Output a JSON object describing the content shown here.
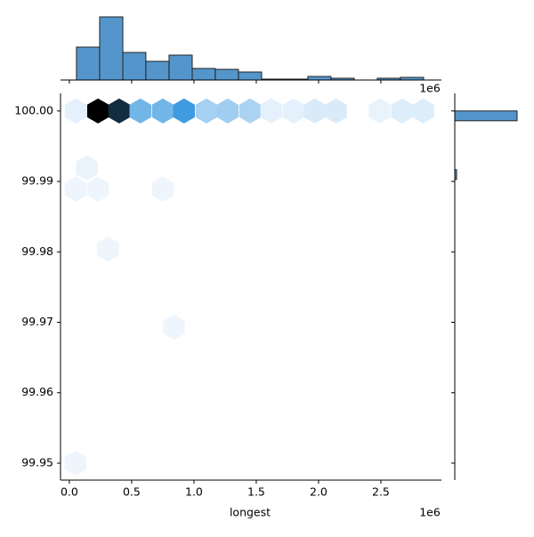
{
  "chart_data": [
    {
      "type": "hexbin",
      "x_label": "longest",
      "x_offset": "1e6",
      "x": [
        0.05,
        0.23,
        0.4,
        0.57,
        0.75,
        0.92,
        1.1,
        1.27,
        1.45,
        1.62,
        1.8,
        1.97,
        2.14,
        2.49,
        2.67,
        2.84,
        0.14,
        0.23,
        0.05,
        0.75,
        0.31,
        0.84,
        0.05
      ],
      "y": [
        100.0,
        100.0,
        100.0,
        100.0,
        100.0,
        100.0,
        100.0,
        100.0,
        100.0,
        100.0,
        100.0,
        100.0,
        100.0,
        100.0,
        100.0,
        100.0,
        99.9919,
        99.9889,
        99.9889,
        99.9889,
        99.9804,
        99.9693,
        99.95
      ],
      "values": [
        3,
        70,
        60,
        25,
        25,
        35,
        15,
        16,
        14,
        3,
        3,
        5,
        5,
        2,
        4,
        4,
        2,
        1,
        1,
        1,
        1,
        1,
        1
      ],
      "cmap": [
        "#f3f8fd",
        "#3f9be0",
        "#000000"
      ],
      "xlim": [
        -0.071,
        2.986
      ],
      "ylim": [
        99.9476,
        100.0025
      ],
      "xticks": [
        {
          "value": 0,
          "label": "0.0"
        },
        0.5,
        {
          "value": 1,
          "label": "1.0"
        },
        1.5,
        {
          "value": 2,
          "label": "2.0"
        },
        2.5
      ],
      "yticks": [
        99.95,
        99.96,
        99.97,
        99.98,
        99.99,
        {
          "value": 100,
          "label": "100.00"
        }
      ]
    },
    {
      "type": "histogram",
      "orientation": "vertical",
      "x_offset": "1e6",
      "color": "#5496cc",
      "bins": [
        0.057,
        0.243,
        0.429,
        0.614,
        0.8,
        0.986,
        1.171,
        1.357,
        1.543,
        1.729,
        1.914,
        2.1,
        2.286,
        2.471,
        2.657,
        2.843
      ],
      "values": [
        37,
        71,
        31,
        21,
        28,
        13,
        12,
        9,
        1,
        1,
        4,
        2,
        0,
        2,
        3
      ],
      "xlim": [
        -0.071,
        2.986
      ],
      "xticks": [
        0,
        0.5,
        1,
        1.5,
        2,
        2.5
      ],
      "count_lim": [
        0,
        72
      ]
    },
    {
      "type": "histogram",
      "orientation": "horizontal",
      "color": "#5496cc",
      "bins": [
        99.95,
        99.95139,
        99.95278,
        99.95417,
        99.95556,
        99.95694,
        99.95833,
        99.95972,
        99.96111,
        99.9625,
        99.96389,
        99.96528,
        99.96667,
        99.96806,
        99.96944,
        99.97083,
        99.97222,
        99.97361,
        99.975,
        99.97639,
        99.97778,
        99.97917,
        99.98056,
        99.98194,
        99.98333,
        99.98472,
        99.98611,
        99.9875,
        99.98889,
        99.99028,
        99.99167,
        99.99306,
        99.99444,
        99.99583,
        99.99722,
        99.99861,
        100.0
      ],
      "values": [
        0,
        0,
        0,
        0,
        0,
        0,
        0,
        0,
        0,
        0,
        0,
        0,
        0,
        0,
        0,
        0,
        0,
        0,
        0,
        0,
        0,
        0,
        0,
        0,
        0,
        0,
        0,
        0,
        0,
        2,
        0,
        0,
        0,
        0,
        0,
        70
      ],
      "ylim": [
        99.9476,
        100.0025
      ],
      "yticks": [
        99.95,
        99.96,
        99.97,
        99.98,
        99.99,
        100
      ],
      "count_lim": [
        0,
        72
      ]
    }
  ]
}
